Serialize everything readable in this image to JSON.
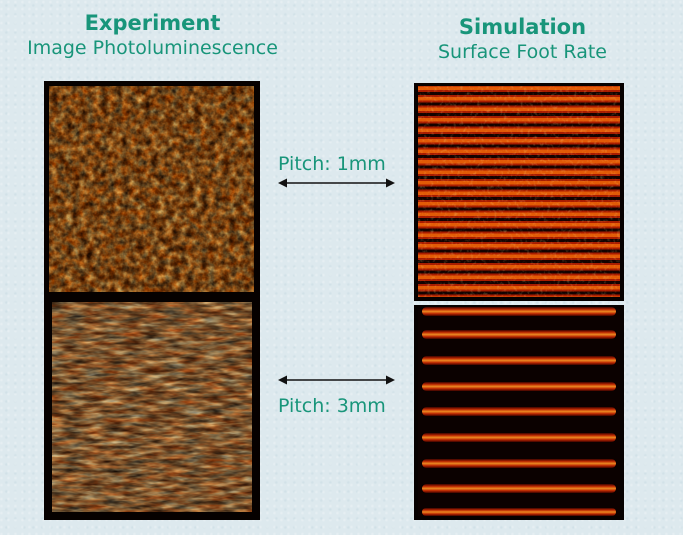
{
  "experiment": {
    "title": "Experiment",
    "subtitle": "Image Photoluminescence"
  },
  "simulation": {
    "title": "Simulation",
    "subtitle": "Surface Foot Rate"
  },
  "rows": [
    {
      "pitch_label": "Pitch: 1mm"
    },
    {
      "pitch_label": "Pitch: 3mm"
    }
  ],
  "colors": {
    "accent_text": "#18957a",
    "background": "#dde9ee",
    "panel_black": "#060100",
    "heat_dark": "#4a0600",
    "heat_mid": "#a81c00",
    "heat_orange": "#e25a06",
    "heat_yellow": "#ffd24a"
  },
  "icons": [
    "double-headed-arrow-icon"
  ]
}
